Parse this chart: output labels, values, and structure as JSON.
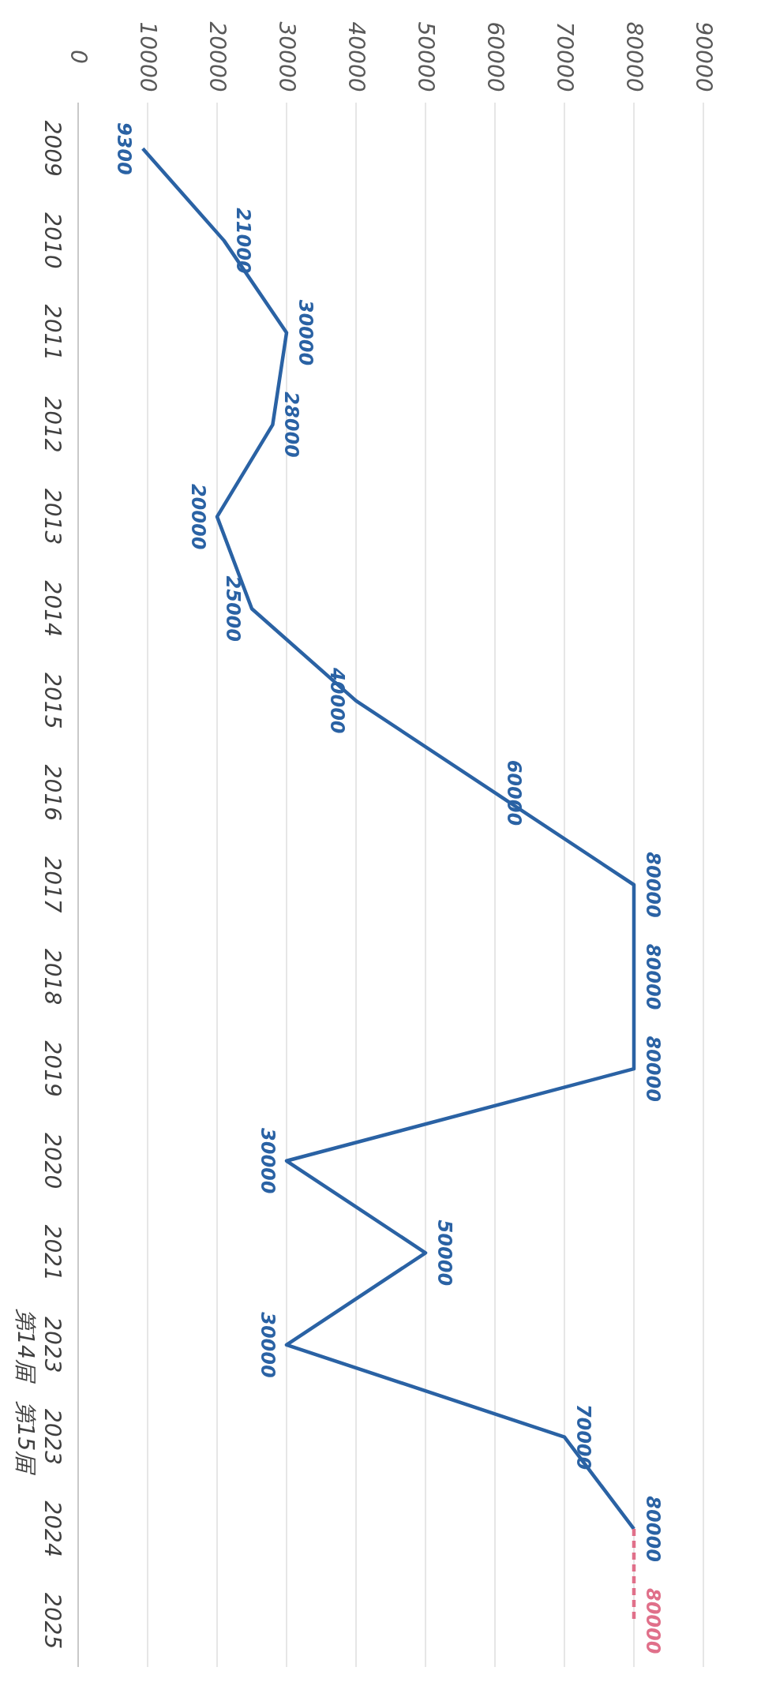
{
  "chart_data": {
    "type": "line",
    "categories": [
      "2009",
      "2010",
      "2011",
      "2012",
      "2013",
      "2014",
      "2015",
      "2016",
      "2017",
      "2018",
      "2019",
      "2020",
      "2021",
      "2023\n第14届",
      "2023\n第15届",
      "2024",
      "2025"
    ],
    "series": [
      {
        "color": "#2a62a4",
        "values": [
          9300,
          21000,
          30000,
          28000,
          20000,
          25000,
          40000,
          60000,
          80000,
          80000,
          80000,
          30000,
          50000,
          30000,
          70000,
          80000,
          null
        ],
        "value_labels": [
          "9300",
          "21000",
          "30000",
          "28000",
          "20000",
          "25000",
          "40000",
          "60000",
          "80000",
          "80000",
          "80000",
          "30000",
          "50000",
          "30000",
          "70000",
          "80000",
          null
        ]
      },
      {
        "color": "#e0708a",
        "line_style": "dashed",
        "values": [
          null,
          null,
          null,
          null,
          null,
          null,
          null,
          null,
          null,
          null,
          null,
          null,
          null,
          null,
          null,
          80000,
          80000
        ],
        "value_labels": [
          null,
          null,
          null,
          null,
          null,
          null,
          null,
          null,
          null,
          null,
          null,
          null,
          null,
          null,
          null,
          null,
          "80000"
        ]
      }
    ],
    "orientation": "horizontal",
    "xlim": [
      0,
      90000
    ],
    "xticks": [
      0,
      10000,
      20000,
      30000,
      40000,
      50000,
      60000,
      70000,
      80000,
      90000
    ],
    "grid": "x"
  }
}
